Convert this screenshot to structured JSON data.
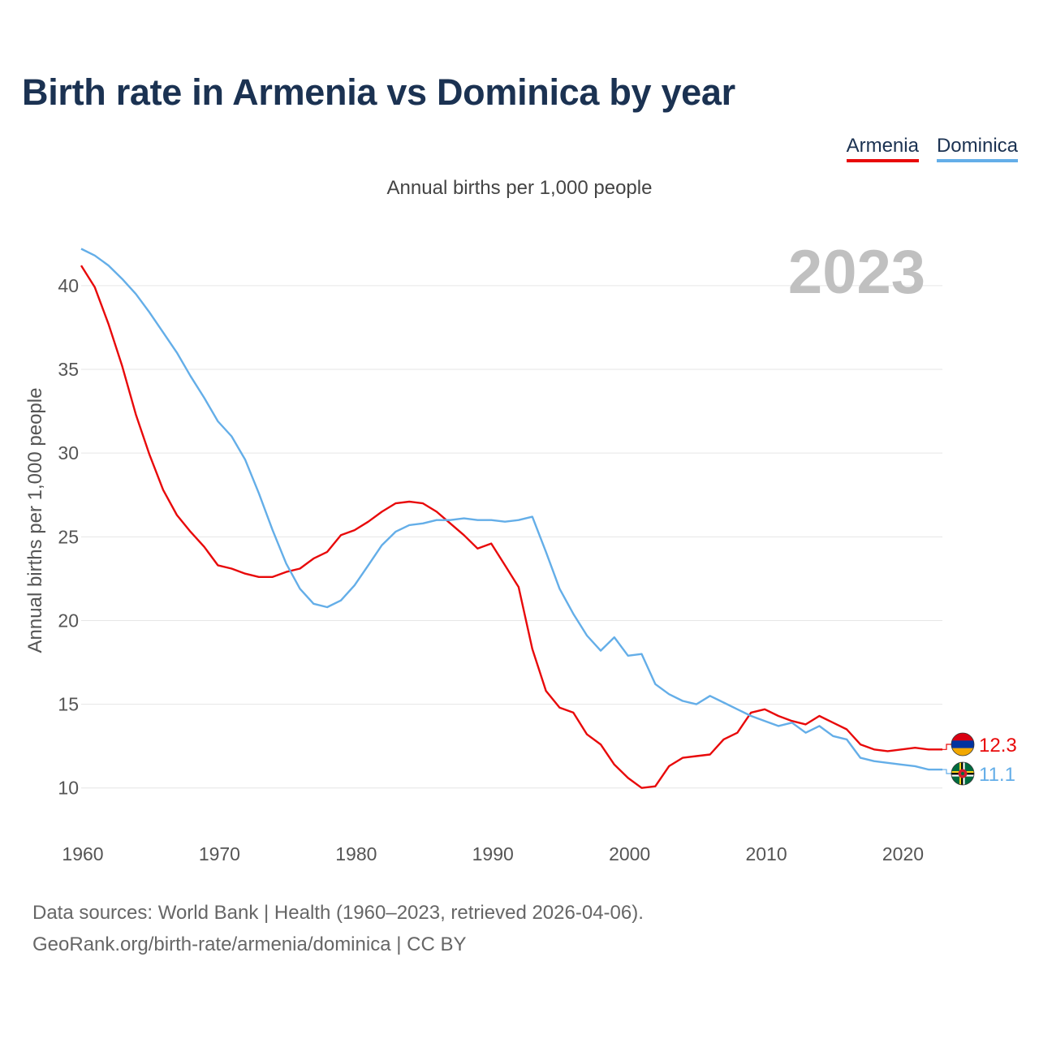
{
  "title": "Birth rate in Armenia vs Dominica by year",
  "subtitle": "Annual births per 1,000 people",
  "legend": [
    {
      "label": "Armenia",
      "color": "#e8090a"
    },
    {
      "label": "Dominica",
      "color": "#64aee8"
    }
  ],
  "footer": {
    "line1": "Data sources: World Bank | Health (1960–2023, retrieved 2026-04-06).",
    "line2": "GeoRank.org/birth-rate/armenia/dominica | CC BY"
  },
  "chart_data": {
    "type": "line",
    "year_label": "2023",
    "ylabel": "Annual births per 1,000 people",
    "xlabel": "",
    "xlim": [
      1960,
      2023
    ],
    "ylim": [
      8,
      43
    ],
    "xticks": [
      1960,
      1970,
      1980,
      1990,
      2000,
      2010,
      2020
    ],
    "yticks": [
      10,
      15,
      20,
      25,
      30,
      35,
      40
    ],
    "grid": true,
    "x": [
      1960,
      1961,
      1962,
      1963,
      1964,
      1965,
      1966,
      1967,
      1968,
      1969,
      1970,
      1971,
      1972,
      1973,
      1974,
      1975,
      1976,
      1977,
      1978,
      1979,
      1980,
      1981,
      1982,
      1983,
      1984,
      1985,
      1986,
      1987,
      1988,
      1989,
      1990,
      1991,
      1992,
      1993,
      1994,
      1995,
      1996,
      1997,
      1998,
      1999,
      2000,
      2001,
      2002,
      2003,
      2004,
      2005,
      2006,
      2007,
      2008,
      2009,
      2010,
      2011,
      2012,
      2013,
      2014,
      2015,
      2016,
      2017,
      2018,
      2019,
      2020,
      2021,
      2022,
      2023
    ],
    "series": [
      {
        "name": "Armenia",
        "color": "#e8090a",
        "end_label": "12.3",
        "values": [
          41.2,
          39.9,
          37.7,
          35.2,
          32.3,
          29.9,
          27.8,
          26.3,
          25.3,
          24.4,
          23.3,
          23.1,
          22.8,
          22.6,
          22.6,
          22.9,
          23.1,
          23.7,
          24.1,
          25.1,
          25.4,
          25.9,
          26.5,
          27.0,
          27.1,
          27.0,
          26.5,
          25.8,
          25.1,
          24.3,
          24.6,
          23.3,
          22.0,
          18.3,
          15.8,
          14.8,
          14.5,
          13.2,
          12.6,
          11.4,
          10.6,
          10.0,
          10.1,
          11.3,
          11.8,
          11.9,
          12.0,
          12.9,
          13.3,
          14.5,
          14.7,
          14.3,
          14.0,
          13.8,
          14.3,
          13.9,
          13.5,
          12.6,
          12.3,
          12.2,
          12.3,
          12.4,
          12.3,
          12.3
        ]
      },
      {
        "name": "Dominica",
        "color": "#64aee8",
        "end_label": "11.1",
        "values": [
          42.2,
          41.8,
          41.2,
          40.4,
          39.5,
          38.4,
          37.2,
          36.0,
          34.6,
          33.3,
          31.9,
          31.0,
          29.6,
          27.6,
          25.4,
          23.4,
          21.9,
          21.0,
          20.8,
          21.2,
          22.1,
          23.3,
          24.5,
          25.3,
          25.7,
          25.8,
          26.0,
          26.0,
          26.1,
          26.0,
          26.0,
          25.9,
          26.0,
          26.2,
          24.1,
          21.9,
          20.4,
          19.1,
          18.2,
          19.0,
          17.9,
          18.0,
          16.2,
          15.6,
          15.2,
          15.0,
          15.5,
          15.1,
          14.7,
          14.3,
          14.0,
          13.7,
          13.9,
          13.3,
          13.7,
          13.1,
          12.9,
          11.8,
          11.6,
          11.5,
          11.4,
          11.3,
          11.1,
          11.1
        ]
      }
    ]
  }
}
